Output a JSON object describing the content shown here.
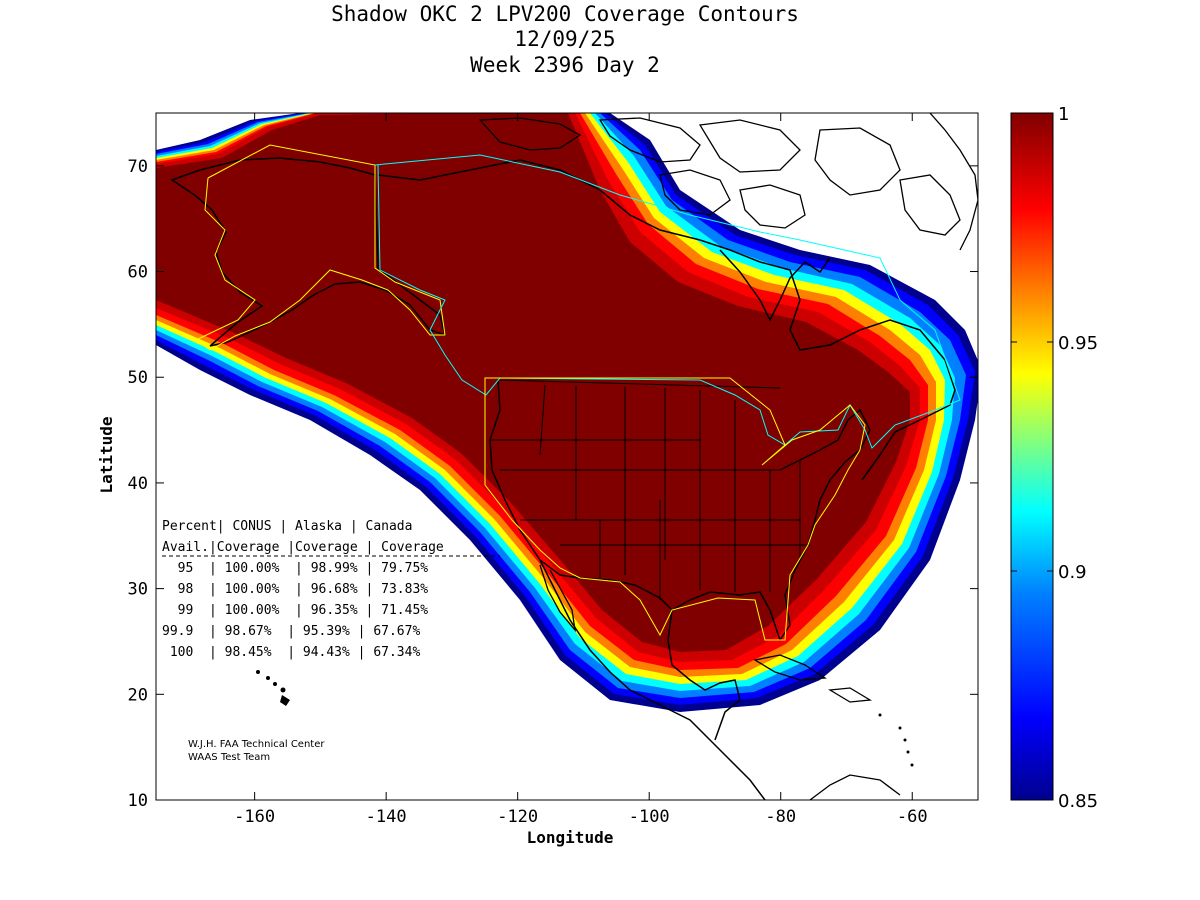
{
  "title": {
    "line1": "Shadow OKC 2 LPV200 Coverage Contours",
    "line2": "12/09/25",
    "line3": "Week 2396 Day 2"
  },
  "axes": {
    "xlabel": "Longitude",
    "ylabel": "Latitude",
    "xlim": [
      -175,
      -50
    ],
    "ylim": [
      10,
      75
    ],
    "xticks": [
      -160,
      -140,
      -120,
      -100,
      -80,
      -60
    ],
    "yticks": [
      10,
      20,
      30,
      40,
      50,
      60,
      70
    ]
  },
  "colorbar": {
    "min": 0.85,
    "max": 1,
    "ticks": [
      {
        "value": 1,
        "label": "1"
      },
      {
        "value": 0.95,
        "label": "0.95"
      },
      {
        "value": 0.9,
        "label": "0.9"
      },
      {
        "value": 0.85,
        "label": "0.85"
      }
    ],
    "colors": [
      "#00008f",
      "#0000ff",
      "#0080ff",
      "#00ffff",
      "#80ff80",
      "#ffff00",
      "#ff8000",
      "#ff0000",
      "#800000"
    ]
  },
  "stats_table": {
    "header1": [
      "Percent",
      "CONUS",
      "Alaska",
      "Canada"
    ],
    "header2": [
      "Avail.",
      "Coverage",
      "Coverage",
      "Coverage"
    ],
    "rows": [
      {
        "avail": "95",
        "conus": "100.00%",
        "alaska": "98.99%",
        "canada": "79.75%"
      },
      {
        "avail": "98",
        "conus": "100.00%",
        "alaska": "96.68%",
        "canada": "73.83%"
      },
      {
        "avail": "99",
        "conus": "100.00%",
        "alaska": "96.35%",
        "canada": "71.45%"
      },
      {
        "avail": "99.9",
        "conus": "98.67%",
        "alaska": "95.39%",
        "canada": "67.67%"
      },
      {
        "avail": "100",
        "conus": "98.45%",
        "alaska": "94.43%",
        "canada": "67.34%"
      }
    ]
  },
  "credits": {
    "line1": "W.J.H. FAA Technical Center",
    "line2": "WAAS Test Team"
  },
  "map_colors": {
    "max_coverage": "#800000",
    "boundary_yellow": "#ffff00",
    "boundary_cyan": "#00ffff",
    "coast": "#000000"
  }
}
